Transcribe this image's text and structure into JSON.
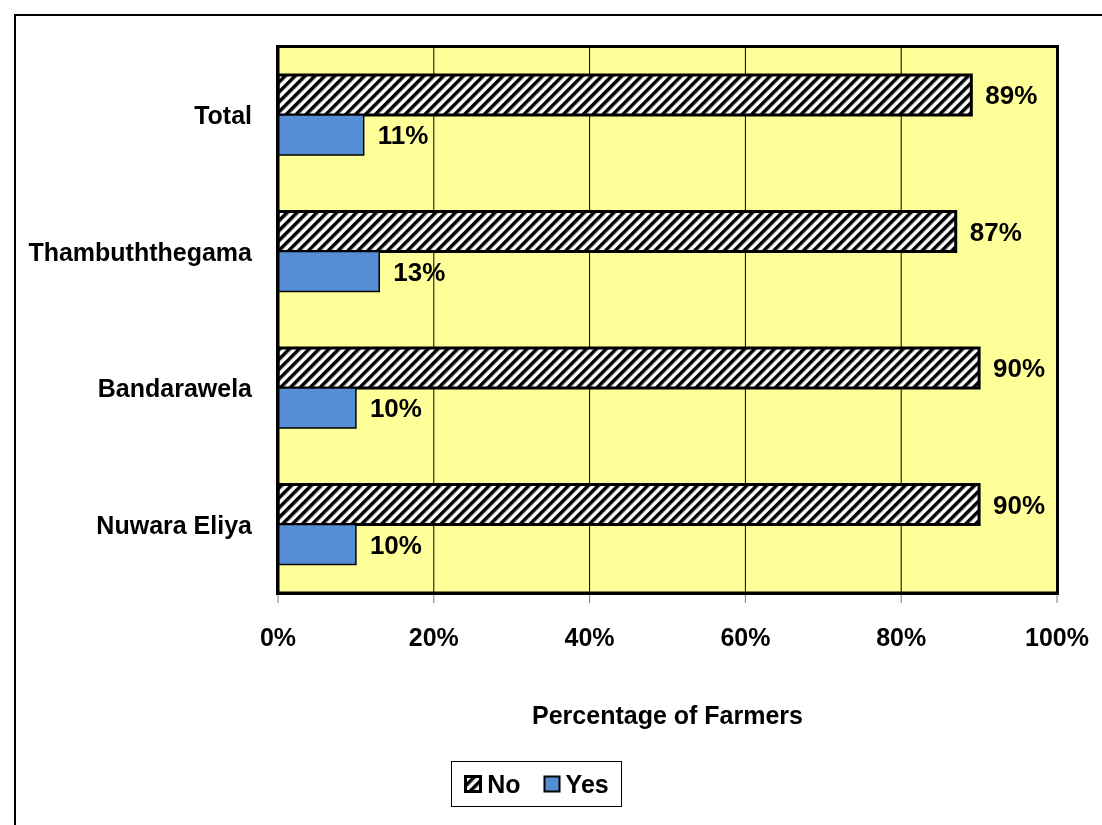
{
  "chart_data": {
    "type": "bar",
    "orientation": "horizontal",
    "categories": [
      "Total",
      "Thambuththegama",
      "Bandarawela",
      "Nuwara Eliya"
    ],
    "series": [
      {
        "name": "No",
        "color": "#000000",
        "values": [
          89,
          87,
          90,
          90
        ],
        "value_labels": [
          "89%",
          "87%",
          "90%",
          "90%"
        ]
      },
      {
        "name": "Yes",
        "color": "#558ed5",
        "values": [
          11,
          13,
          10,
          10
        ],
        "value_labels": [
          "11%",
          "13%",
          "10%",
          "10%"
        ]
      }
    ],
    "xlabel": "Percentage of Farmers",
    "xlim": [
      0,
      100
    ],
    "xticks": [
      {
        "value": 0,
        "label": "0%"
      },
      {
        "value": 20,
        "label": "20%"
      },
      {
        "value": 40,
        "label": "40%"
      },
      {
        "value": 60,
        "label": "60%"
      },
      {
        "value": 80,
        "label": "80%"
      },
      {
        "value": 100,
        "label": "100%"
      }
    ],
    "grid": "x",
    "legend": "bottom"
  }
}
